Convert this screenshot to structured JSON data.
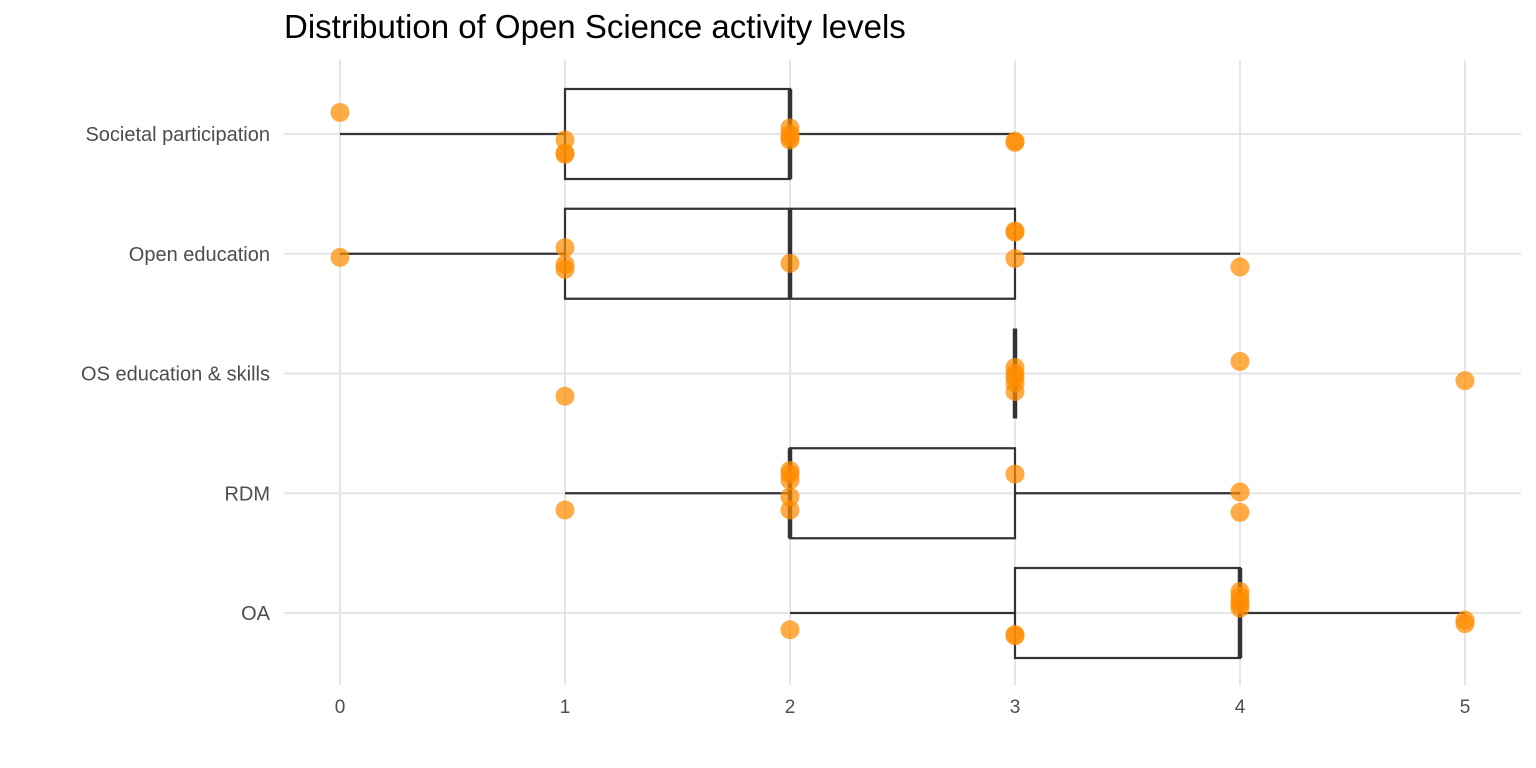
{
  "chart_data": {
    "type": "boxplot",
    "title": "Distribution of Open Science activity levels",
    "xlabel": "",
    "ylabel": "",
    "xlim": [
      -0.25,
      5.25
    ],
    "x_ticks": [
      0,
      1,
      2,
      3,
      4,
      5
    ],
    "grid": true,
    "point_color": "#FF8C00",
    "box_color": "#333333",
    "categories": [
      "Societal participation",
      "Open education",
      "OS education & skills",
      "RDM",
      "OA"
    ],
    "boxes": [
      {
        "category": "Societal participation",
        "whisker_low": 0,
        "q1": 1,
        "median": 2,
        "q3": 2,
        "whisker_high": 3,
        "points": [
          {
            "value": 0,
            "offset": -0.18
          },
          {
            "value": 1,
            "offset": 0.05
          },
          {
            "value": 1,
            "offset": 0.16
          },
          {
            "value": 1,
            "offset": 0.17
          },
          {
            "value": 2,
            "offset": 0.0
          },
          {
            "value": 2,
            "offset": 0.05
          },
          {
            "value": 2,
            "offset": 0.03
          },
          {
            "value": 2,
            "offset": -0.05
          },
          {
            "value": 3,
            "offset": 0.06
          },
          {
            "value": 3,
            "offset": 0.07
          }
        ]
      },
      {
        "category": "Open education",
        "whisker_low": 0,
        "q1": 1,
        "median": 2,
        "q3": 3,
        "whisker_high": 4,
        "points": [
          {
            "value": 0,
            "offset": 0.03
          },
          {
            "value": 1,
            "offset": -0.05
          },
          {
            "value": 1,
            "offset": 0.09
          },
          {
            "value": 1,
            "offset": 0.13
          },
          {
            "value": 2,
            "offset": 0.08
          },
          {
            "value": 3,
            "offset": -0.19
          },
          {
            "value": 3,
            "offset": -0.18
          },
          {
            "value": 3,
            "offset": 0.04
          },
          {
            "value": 4,
            "offset": 0.11
          }
        ]
      },
      {
        "category": "OS education & skills",
        "whisker_low": 3,
        "q1": 3,
        "median": 3,
        "q3": 3,
        "whisker_high": 3,
        "points": [
          {
            "value": 1,
            "offset": 0.19
          },
          {
            "value": 3,
            "offset": -0.05
          },
          {
            "value": 3,
            "offset": 0.0
          },
          {
            "value": 3,
            "offset": 0.03
          },
          {
            "value": 3,
            "offset": 0.08
          },
          {
            "value": 3,
            "offset": 0.15
          },
          {
            "value": 4,
            "offset": -0.1
          },
          {
            "value": 5,
            "offset": 0.06
          }
        ]
      },
      {
        "category": "RDM",
        "whisker_low": 1,
        "q1": 2,
        "median": 2,
        "q3": 3,
        "whisker_high": 4,
        "points": [
          {
            "value": 1,
            "offset": 0.14
          },
          {
            "value": 2,
            "offset": -0.19
          },
          {
            "value": 2,
            "offset": -0.16
          },
          {
            "value": 2,
            "offset": -0.11
          },
          {
            "value": 2,
            "offset": 0.03
          },
          {
            "value": 2,
            "offset": 0.14
          },
          {
            "value": 3,
            "offset": -0.16
          },
          {
            "value": 4,
            "offset": -0.01
          },
          {
            "value": 4,
            "offset": 0.16
          }
        ]
      },
      {
        "category": "OA",
        "whisker_low": 2,
        "q1": 3,
        "median": 4,
        "q3": 4,
        "whisker_high": 5,
        "points": [
          {
            "value": 2,
            "offset": 0.14
          },
          {
            "value": 3,
            "offset": 0.18
          },
          {
            "value": 3,
            "offset": 0.19
          },
          {
            "value": 4,
            "offset": -0.18
          },
          {
            "value": 4,
            "offset": -0.14
          },
          {
            "value": 4,
            "offset": -0.1
          },
          {
            "value": 4,
            "offset": -0.07
          },
          {
            "value": 4,
            "offset": -0.04
          },
          {
            "value": 5,
            "offset": 0.06
          },
          {
            "value": 5,
            "offset": 0.09
          }
        ]
      }
    ]
  }
}
